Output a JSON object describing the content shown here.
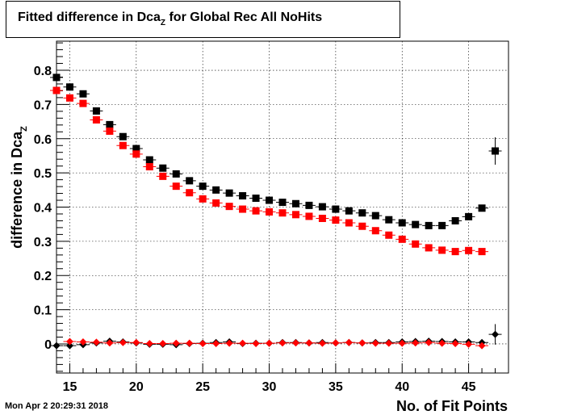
{
  "header": {
    "title_main": "Fitted difference in Dca",
    "title_sub": "Z",
    "title_rest": " for Global Rec All NoHits"
  },
  "footer": {
    "timestamp": "Mon Apr  2 20:29:31 2018"
  },
  "chart_data": {
    "type": "scatter",
    "xlabel": "No. of Fit Points",
    "ylabel_main": "difference in Dca",
    "ylabel_sub": "Z",
    "xlim": [
      14,
      48
    ],
    "ylim": [
      -0.085,
      0.885
    ],
    "x_ticks": [
      15,
      20,
      25,
      30,
      35,
      40,
      45
    ],
    "y_ticks": [
      0,
      0.1,
      0.2,
      0.3,
      0.4,
      0.5,
      0.6,
      0.7,
      0.8
    ],
    "y_tick_labels": [
      "0",
      "0.1",
      "0.2",
      "0.3",
      "0.4",
      "0.5",
      "0.6",
      "0.7",
      "0.8"
    ],
    "grid": true,
    "series": [
      {
        "marker": "square",
        "color": "#000000",
        "x": [
          14,
          15,
          16,
          17,
          18,
          19,
          20,
          21,
          22,
          23,
          24,
          25,
          26,
          27,
          28,
          29,
          30,
          31,
          32,
          33,
          34,
          35,
          36,
          37,
          38,
          39,
          40,
          41,
          42,
          43,
          44,
          45,
          46,
          47
        ],
        "y": [
          0.779,
          0.751,
          0.731,
          0.681,
          0.641,
          0.606,
          0.571,
          0.538,
          0.514,
          0.497,
          0.477,
          0.461,
          0.45,
          0.441,
          0.433,
          0.426,
          0.42,
          0.414,
          0.41,
          0.405,
          0.401,
          0.394,
          0.389,
          0.383,
          0.375,
          0.363,
          0.354,
          0.349,
          0.346,
          0.346,
          0.36,
          0.372,
          0.397,
          0.564
        ],
        "err": [
          0.008,
          0.008,
          0.008,
          0.008,
          0.008,
          0.008,
          0.008,
          0.008,
          0.008,
          0.008,
          0.008,
          0.008,
          0.008,
          0.008,
          0.008,
          0.008,
          0.008,
          0.008,
          0.008,
          0.008,
          0.008,
          0.008,
          0.008,
          0.008,
          0.008,
          0.008,
          0.008,
          0.008,
          0.008,
          0.008,
          0.008,
          0.008,
          0.01,
          0.04
        ]
      },
      {
        "marker": "square",
        "color": "#ff0000",
        "x": [
          14,
          15,
          16,
          17,
          18,
          19,
          20,
          21,
          22,
          23,
          24,
          25,
          26,
          27,
          28,
          29,
          30,
          31,
          32,
          33,
          34,
          35,
          36,
          37,
          38,
          39,
          40,
          41,
          42,
          43,
          44,
          45,
          46
        ],
        "y": [
          0.741,
          0.719,
          0.703,
          0.655,
          0.622,
          0.58,
          0.555,
          0.518,
          0.49,
          0.461,
          0.442,
          0.424,
          0.412,
          0.402,
          0.394,
          0.389,
          0.386,
          0.383,
          0.378,
          0.373,
          0.367,
          0.362,
          0.354,
          0.344,
          0.331,
          0.318,
          0.306,
          0.292,
          0.281,
          0.274,
          0.27,
          0.273,
          0.27
        ],
        "err": [
          0.008,
          0.008,
          0.008,
          0.008,
          0.008,
          0.008,
          0.008,
          0.008,
          0.008,
          0.008,
          0.008,
          0.008,
          0.008,
          0.008,
          0.008,
          0.008,
          0.008,
          0.008,
          0.008,
          0.008,
          0.008,
          0.008,
          0.008,
          0.008,
          0.008,
          0.008,
          0.008,
          0.008,
          0.008,
          0.008,
          0.008,
          0.008,
          0.008
        ]
      },
      {
        "marker": "diamond",
        "color": "#000000",
        "x": [
          14,
          15,
          16,
          17,
          18,
          19,
          20,
          21,
          22,
          23,
          24,
          25,
          26,
          27,
          28,
          29,
          30,
          31,
          32,
          33,
          34,
          35,
          36,
          37,
          38,
          39,
          40,
          41,
          42,
          43,
          44,
          45,
          46,
          47
        ],
        "y": [
          -0.005,
          -0.005,
          -0.002,
          0.003,
          0.008,
          0.006,
          0.003,
          -0.001,
          -0.001,
          -0.002,
          0.001,
          0.002,
          0.004,
          0.006,
          0.001,
          0.002,
          0.002,
          0.004,
          0.004,
          0.003,
          0.004,
          0.003,
          0.004,
          0.003,
          0.004,
          0.004,
          0.006,
          0.007,
          0.008,
          0.007,
          0.006,
          0.006,
          0.004,
          0.028
        ],
        "err": [
          0.008,
          0.008,
          0.008,
          0.008,
          0.008,
          0.008,
          0.008,
          0.008,
          0.008,
          0.008,
          0.008,
          0.008,
          0.008,
          0.008,
          0.008,
          0.008,
          0.008,
          0.008,
          0.008,
          0.008,
          0.008,
          0.008,
          0.008,
          0.008,
          0.008,
          0.008,
          0.008,
          0.008,
          0.008,
          0.008,
          0.008,
          0.008,
          0.008,
          0.03
        ]
      },
      {
        "marker": "diamond",
        "color": "#ff0000",
        "x": [
          15,
          16,
          17,
          18,
          19,
          20,
          21,
          22,
          23,
          24,
          25,
          26,
          27,
          28,
          29,
          30,
          31,
          32,
          33,
          34,
          35,
          36,
          37,
          38,
          39,
          40,
          41,
          42,
          43,
          44,
          45,
          46
        ],
        "y": [
          0.007,
          0.006,
          0.005,
          0.003,
          0.004,
          0.004,
          0.001,
          0.001,
          0.002,
          0.002,
          0.001,
          0.001,
          0.002,
          0.002,
          0.001,
          0.002,
          0.003,
          0.003,
          0.003,
          0.002,
          0.003,
          0.004,
          0.003,
          0.002,
          0.002,
          0.002,
          0.003,
          0.004,
          0.002,
          0.001,
          -0.001,
          -0.005
        ],
        "err": [
          0.006,
          0.006,
          0.006,
          0.006,
          0.006,
          0.006,
          0.006,
          0.006,
          0.006,
          0.006,
          0.006,
          0.006,
          0.006,
          0.006,
          0.006,
          0.006,
          0.006,
          0.006,
          0.006,
          0.006,
          0.006,
          0.006,
          0.006,
          0.006,
          0.006,
          0.006,
          0.006,
          0.006,
          0.006,
          0.006,
          0.006,
          0.006
        ]
      }
    ]
  }
}
